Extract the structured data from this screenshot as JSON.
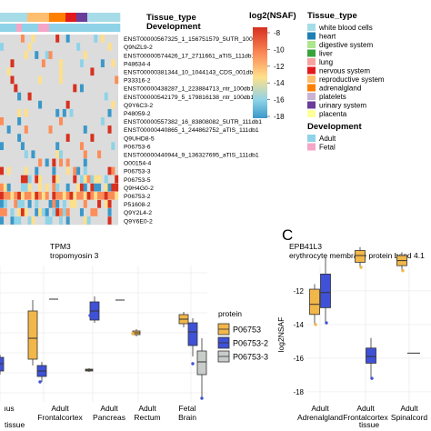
{
  "heatmap": {
    "annotation_header": {
      "tissue_label": "Tissue_type",
      "development_label": "Development"
    },
    "row_labels": [
      "ENST00000567325_1_156751579_5UTR_100db1",
      "Q9NZL9-2",
      "ENST00000574426_17_2711661_aTIS_111db1",
      "P48634-4",
      "ENST00000381344_10_1044143_CDS_001db3",
      "P33316-2",
      "ENST00000438287_1_223884713_ntr_100db1",
      "ENST00000542179_5_179816138_ntr_100db1",
      "Q9Y6C3-2",
      "P48059-2",
      "ENST00000557382_16_83808082_5UTR_111db1",
      "ENST00000440865_1_244862752_aTIS_111db1",
      "Q9UHD8-5",
      "P06753-6",
      "ENST00000440944_9_136327695_aTIS_111db1",
      "O00154-4",
      "P06753-3",
      "P06753-5",
      "Q9H4G0-2",
      "P06753-2",
      "P51608-2",
      "Q9Y2L4-2",
      "Q9Y6E0-2"
    ],
    "cell_colors": {
      "background": "#dcdcdc",
      "high": "#d7301f",
      "mid_high": "#fc8d59",
      "mid": "#fee08b",
      "low": "#8fd3e8",
      "lowest": "#3a98c9"
    }
  },
  "legend_log2": {
    "title": "log2(NSAF)",
    "ticks": [
      "-8",
      "-10",
      "-12",
      "-14",
      "-16",
      "-18"
    ]
  },
  "legend_tissue": {
    "title": "Tissue_type",
    "items": [
      {
        "label": "white blood cells",
        "color": "#a6dce8"
      },
      {
        "label": "heart",
        "color": "#1f7fb4"
      },
      {
        "label": "digestive system",
        "color": "#aee48e"
      },
      {
        "label": "liver",
        "color": "#39a33b"
      },
      {
        "label": "lung",
        "color": "#f6a3a0"
      },
      {
        "label": "nervous system",
        "color": "#e31a1c"
      },
      {
        "label": "reproductive system",
        "color": "#fdbf6f"
      },
      {
        "label": "adrenalgland",
        "color": "#ff7f00"
      },
      {
        "label": "platelets",
        "color": "#cab2d6"
      },
      {
        "label": "urinary system",
        "color": "#6a3d9a"
      },
      {
        "label": "placenta",
        "color": "#ffff99"
      }
    ]
  },
  "legend_development": {
    "title": "Development",
    "items": [
      {
        "label": "Adult",
        "color": "#8fd3e8"
      },
      {
        "label": "Fetal",
        "color": "#f4a6c8"
      }
    ]
  },
  "panel_b": {
    "gene": "TPM3",
    "description": "tropomyosin 3",
    "xlabel": "tissue",
    "x_ticks_visible": [
      "ıus",
      "Adult\nFrontalcortex",
      "Adult\nPancreas",
      "Adult\nRectum",
      "Fetal\nBrain"
    ],
    "legend_title": "protein",
    "legend_items": [
      {
        "label": "P06753",
        "color": "#f2b749"
      },
      {
        "label": "P06753-2",
        "color": "#3f51d6"
      },
      {
        "label": "P06753-3",
        "color": "#c9cdca"
      }
    ]
  },
  "panel_c": {
    "letter": "C",
    "gene": "EPB41L3",
    "description": "erythrocyte membrane protein band 4.1",
    "ylabel": "log2NSAF",
    "xlabel": "tissue",
    "y_ticks": [
      "-12",
      "-14",
      "-16",
      "-18"
    ],
    "x_ticks": [
      "Adult\nAdrenalgland",
      "Adult\nFrontalcortex",
      "Adult\nSpinalcord"
    ]
  },
  "chart_data": [
    {
      "type": "box",
      "title": "TPM3",
      "subtitle": "tropomyosin 3",
      "xlabel": "tissue",
      "categories": [
        "ıus",
        "Adult Frontalcortex",
        "Adult Pancreas",
        "Adult Rectum",
        "Fetal Brain"
      ],
      "series": [
        {
          "name": "P06753",
          "color": "#f2b749"
        },
        {
          "name": "P06753-2",
          "color": "#3f51d6"
        },
        {
          "name": "P06753-3",
          "color": "#c9cdca"
        }
      ],
      "legend": "right"
    },
    {
      "type": "box",
      "title": "EPB41L3",
      "subtitle": "erythrocyte membrane protein band 4.1",
      "xlabel": "tissue",
      "ylabel": "log2NSAF",
      "ylim": [
        -18.6,
        -10.6
      ],
      "categories": [
        "Adult Adrenalgland",
        "Adult Frontalcortex",
        "Adult Spinalcord"
      ],
      "series": [
        {
          "name": "P06753",
          "color": "#f2b749",
          "boxes": {
            "Adult Adrenalgland": {
              "q1": -13.4,
              "median": -12.8,
              "q3": -11.9,
              "min": -14.0,
              "max": -11.6
            },
            "Adult Frontalcortex": {
              "q1": -10.3,
              "median": -9.9,
              "q3": -9.6,
              "min": -10.6,
              "max": -9.4
            },
            "Adult Spinalcord": {
              "q1": -10.5,
              "median": -10.2,
              "q3": -9.9,
              "min": -10.8,
              "max": -9.7
            }
          }
        },
        {
          "name": "P06753-2",
          "color": "#3f51d6",
          "boxes": {
            "Adult Adrenalgland": {
              "q1": -13.0,
              "median": -12.1,
              "q3": -11.0,
              "min": -13.9,
              "max": -10.0
            },
            "Adult Frontalcortex": {
              "q1": -16.3,
              "median": -15.9,
              "q3": -15.4,
              "min": -17.2,
              "max": -14.8
            },
            "Adult Spinalcord": {
              "q1": -15.7,
              "median": -15.7,
              "q3": -15.7,
              "min": -15.7,
              "max": -15.7
            }
          }
        }
      ]
    }
  ]
}
